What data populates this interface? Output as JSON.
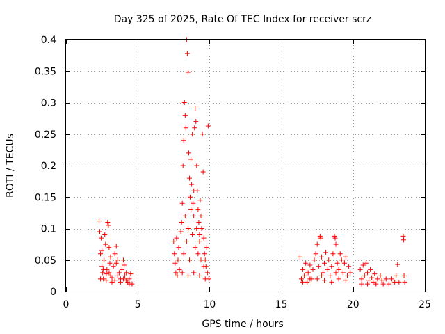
{
  "chart_data": {
    "type": "scatter",
    "title": "Day 325 of 2025, Rate Of TEC Index for receiver scrz",
    "xlabel": "GPS time / hours",
    "ylabel": "ROTI / TECUs",
    "xlim": [
      0,
      25
    ],
    "ylim": [
      0,
      0.4
    ],
    "xticks": [
      0,
      5,
      10,
      15,
      20,
      25
    ],
    "xtick_labels": [
      "0",
      "5",
      "10",
      "15",
      "20",
      "25"
    ],
    "yticks": [
      0,
      0.05,
      0.1,
      0.15,
      0.2,
      0.25,
      0.3,
      0.35,
      0.4
    ],
    "ytick_labels": [
      "0",
      "0.05",
      "0.1",
      "0.15",
      "0.2",
      "0.25",
      "0.3",
      "0.35",
      "0.4"
    ],
    "grid": true,
    "marker": "+",
    "color": "#ff0000",
    "series": [
      {
        "name": "ROTI",
        "points": [
          [
            2.3,
            0.112
          ],
          [
            2.35,
            0.095
          ],
          [
            2.4,
            0.06
          ],
          [
            2.45,
            0.085
          ],
          [
            2.5,
            0.04
          ],
          [
            2.55,
            0.03
          ],
          [
            2.6,
            0.02
          ],
          [
            2.65,
            0.05
          ],
          [
            2.7,
            0.09
          ],
          [
            2.75,
            0.075
          ],
          [
            2.8,
            0.028
          ],
          [
            2.85,
            0.035
          ],
          [
            2.9,
            0.11
          ],
          [
            2.95,
            0.105
          ],
          [
            3.0,
            0.07
          ],
          [
            3.05,
            0.045
          ],
          [
            3.1,
            0.025
          ],
          [
            3.2,
            0.015
          ],
          [
            3.3,
            0.04
          ],
          [
            3.4,
            0.06
          ],
          [
            3.5,
            0.072
          ],
          [
            3.6,
            0.05
          ],
          [
            3.7,
            0.03
          ],
          [
            3.8,
            0.02
          ],
          [
            3.9,
            0.035
          ],
          [
            4.0,
            0.05
          ],
          [
            4.1,
            0.025
          ],
          [
            4.2,
            0.03
          ],
          [
            4.3,
            0.015
          ],
          [
            4.4,
            0.02
          ],
          [
            4.5,
            0.028
          ],
          [
            4.6,
            0.012
          ],
          [
            2.4,
            0.02
          ],
          [
            2.6,
            0.035
          ],
          [
            2.8,
            0.018
          ],
          [
            3.0,
            0.03
          ],
          [
            3.2,
            0.022
          ],
          [
            3.4,
            0.018
          ],
          [
            3.6,
            0.025
          ],
          [
            3.8,
            0.015
          ],
          [
            4.0,
            0.02
          ],
          [
            4.2,
            0.018
          ],
          [
            4.4,
            0.012
          ],
          [
            2.5,
            0.065
          ],
          [
            3.1,
            0.055
          ],
          [
            3.5,
            0.045
          ],
          [
            4.05,
            0.042
          ],
          [
            7.5,
            0.08
          ],
          [
            7.55,
            0.06
          ],
          [
            7.6,
            0.045
          ],
          [
            7.65,
            0.03
          ],
          [
            7.7,
            0.085
          ],
          [
            7.75,
            0.025
          ],
          [
            7.8,
            0.05
          ],
          [
            7.85,
            0.07
          ],
          [
            7.9,
            0.035
          ],
          [
            8.0,
            0.095
          ],
          [
            8.05,
            0.11
          ],
          [
            8.1,
            0.14
          ],
          [
            8.15,
            0.2
          ],
          [
            8.2,
            0.24
          ],
          [
            8.25,
            0.3
          ],
          [
            8.3,
            0.28
          ],
          [
            8.35,
            0.26
          ],
          [
            8.4,
            0.4
          ],
          [
            8.45,
            0.378
          ],
          [
            8.5,
            0.348
          ],
          [
            8.55,
            0.22
          ],
          [
            8.6,
            0.18
          ],
          [
            8.65,
            0.15
          ],
          [
            8.7,
            0.21
          ],
          [
            8.75,
            0.17
          ],
          [
            8.8,
            0.25
          ],
          [
            8.85,
            0.14
          ],
          [
            8.9,
            0.12
          ],
          [
            8.95,
            0.26
          ],
          [
            9.0,
            0.29
          ],
          [
            9.05,
            0.27
          ],
          [
            9.1,
            0.2
          ],
          [
            9.15,
            0.16
          ],
          [
            9.2,
            0.13
          ],
          [
            9.25,
            0.11
          ],
          [
            9.3,
            0.09
          ],
          [
            9.35,
            0.145
          ],
          [
            9.4,
            0.12
          ],
          [
            9.45,
            0.1
          ],
          [
            9.5,
            0.25
          ],
          [
            9.55,
            0.19
          ],
          [
            9.6,
            0.085
          ],
          [
            9.65,
            0.06
          ],
          [
            9.7,
            0.05
          ],
          [
            9.75,
            0.04
          ],
          [
            9.8,
            0.07
          ],
          [
            9.85,
            0.03
          ],
          [
            9.9,
            0.263
          ],
          [
            9.95,
            0.02
          ],
          [
            8.2,
            0.06
          ],
          [
            8.4,
            0.08
          ],
          [
            8.6,
            0.05
          ],
          [
            8.8,
            0.09
          ],
          [
            9.0,
            0.07
          ],
          [
            9.2,
            0.06
          ],
          [
            9.4,
            0.05
          ],
          [
            9.6,
            0.04
          ],
          [
            8.3,
            0.12
          ],
          [
            8.5,
            0.1
          ],
          [
            8.7,
            0.13
          ],
          [
            8.9,
            0.16
          ],
          [
            9.1,
            0.1
          ],
          [
            9.3,
            0.08
          ],
          [
            8.1,
            0.03
          ],
          [
            8.5,
            0.025
          ],
          [
            8.9,
            0.03
          ],
          [
            9.3,
            0.025
          ],
          [
            9.7,
            0.02
          ],
          [
            16.3,
            0.055
          ],
          [
            16.4,
            0.02
          ],
          [
            16.5,
            0.035
          ],
          [
            16.6,
            0.025
          ],
          [
            16.7,
            0.045
          ],
          [
            16.8,
            0.015
          ],
          [
            16.9,
            0.03
          ],
          [
            17.0,
            0.042
          ],
          [
            17.1,
            0.02
          ],
          [
            17.2,
            0.035
          ],
          [
            17.3,
            0.05
          ],
          [
            17.4,
            0.06
          ],
          [
            17.5,
            0.075
          ],
          [
            17.6,
            0.04
          ],
          [
            17.7,
            0.088
          ],
          [
            17.75,
            0.085
          ],
          [
            17.8,
            0.055
          ],
          [
            17.9,
            0.03
          ],
          [
            18.0,
            0.045
          ],
          [
            18.1,
            0.062
          ],
          [
            18.2,
            0.035
          ],
          [
            18.3,
            0.05
          ],
          [
            18.4,
            0.025
          ],
          [
            18.5,
            0.04
          ],
          [
            18.6,
            0.06
          ],
          [
            18.7,
            0.088
          ],
          [
            18.75,
            0.085
          ],
          [
            18.8,
            0.075
          ],
          [
            18.9,
            0.045
          ],
          [
            19.0,
            0.035
          ],
          [
            19.1,
            0.06
          ],
          [
            19.2,
            0.05
          ],
          [
            19.3,
            0.03
          ],
          [
            19.4,
            0.045
          ],
          [
            19.5,
            0.055
          ],
          [
            19.6,
            0.025
          ],
          [
            19.7,
            0.04
          ],
          [
            19.8,
            0.03
          ],
          [
            16.5,
            0.015
          ],
          [
            17.0,
            0.02
          ],
          [
            17.5,
            0.02
          ],
          [
            18.0,
            0.018
          ],
          [
            18.5,
            0.015
          ],
          [
            19.0,
            0.02
          ],
          [
            19.5,
            0.018
          ],
          [
            16.8,
            0.03
          ],
          [
            17.8,
            0.025
          ],
          [
            18.8,
            0.03
          ],
          [
            20.5,
            0.035
          ],
          [
            20.6,
            0.02
          ],
          [
            20.7,
            0.042
          ],
          [
            20.8,
            0.025
          ],
          [
            20.9,
            0.045
          ],
          [
            21.0,
            0.03
          ],
          [
            21.1,
            0.018
          ],
          [
            21.2,
            0.035
          ],
          [
            21.3,
            0.022
          ],
          [
            21.4,
            0.015
          ],
          [
            21.5,
            0.028
          ],
          [
            21.6,
            0.012
          ],
          [
            21.9,
            0.025
          ],
          [
            22.0,
            0.018
          ],
          [
            22.3,
            0.02
          ],
          [
            22.5,
            0.012
          ],
          [
            22.7,
            0.02
          ],
          [
            23.0,
            0.025
          ],
          [
            23.1,
            0.043
          ],
          [
            23.2,
            0.015
          ],
          [
            23.5,
            0.088
          ],
          [
            23.52,
            0.082
          ],
          [
            23.55,
            0.025
          ],
          [
            23.6,
            0.015
          ],
          [
            20.6,
            0.012
          ],
          [
            21.0,
            0.012
          ],
          [
            21.7,
            0.02
          ],
          [
            22.1,
            0.012
          ],
          [
            22.9,
            0.015
          ]
        ]
      }
    ]
  }
}
